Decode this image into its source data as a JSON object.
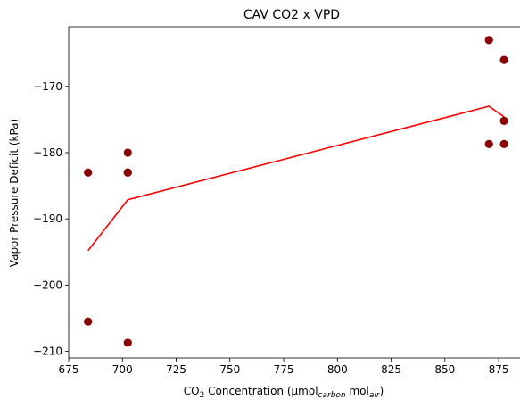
{
  "chart_data": {
    "type": "scatter",
    "title": "CAV CO2 x VPD",
    "xlabel": {
      "prefix": "CO",
      "prefix_sub": "2",
      "main": " Concentration (µmol",
      "sub1": "carbon",
      "mid": " mol",
      "sub2": "air",
      "suffix": ")"
    },
    "ylabel": "Vapor Pressure Deficit (kPa)",
    "xlim": [
      675,
      887
    ],
    "ylim": [
      -211,
      -161
    ],
    "xticks": [
      675,
      700,
      725,
      750,
      775,
      800,
      825,
      850,
      875
    ],
    "yticks": [
      -210,
      -200,
      -190,
      -180,
      -170
    ],
    "grid": false,
    "legend": "none",
    "series": [
      {
        "kind": "scatter",
        "color": "#8b0000",
        "points": [
          {
            "x": 684,
            "y": -183
          },
          {
            "x": 684,
            "y": -205.5
          },
          {
            "x": 702.5,
            "y": -180
          },
          {
            "x": 702.5,
            "y": -183
          },
          {
            "x": 702.5,
            "y": -183
          },
          {
            "x": 702.5,
            "y": -208.7
          },
          {
            "x": 870.5,
            "y": -163
          },
          {
            "x": 870.5,
            "y": -178.7
          },
          {
            "x": 877.5,
            "y": -166
          },
          {
            "x": 877.5,
            "y": -175.2
          },
          {
            "x": 877.5,
            "y": -178.7
          }
        ]
      },
      {
        "kind": "line",
        "color": "#ff0000",
        "points": [
          {
            "x": 684,
            "y": -194.8
          },
          {
            "x": 702.5,
            "y": -187.1
          },
          {
            "x": 870.5,
            "y": -173
          },
          {
            "x": 877.5,
            "y": -174.6
          }
        ]
      }
    ]
  }
}
